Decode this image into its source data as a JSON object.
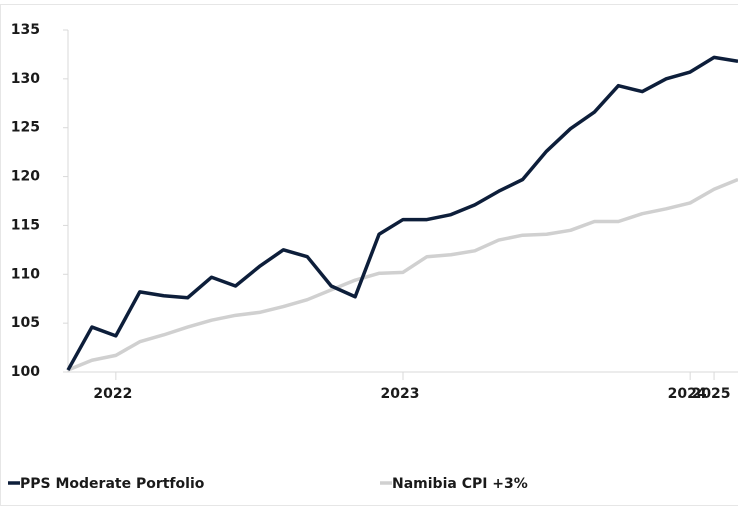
{
  "chart_data": {
    "type": "line",
    "categories": [
      null,
      null,
      "2022",
      null,
      null,
      null,
      null,
      null,
      null,
      null,
      null,
      null,
      null,
      null,
      "2023",
      null,
      null,
      null,
      null,
      null,
      null,
      null,
      null,
      null,
      null,
      null,
      "2024",
      "2025",
      null
    ],
    "series": [
      {
        "name": "PPS Moderate Portfolio",
        "color": "#0d1e3a",
        "values": [
          100.2,
          104.6,
          103.7,
          108.2,
          107.8,
          107.6,
          109.7,
          108.8,
          110.8,
          112.5,
          111.8,
          108.8,
          107.7,
          114.1,
          115.6,
          115.6,
          116.1,
          117.1,
          118.5,
          119.7,
          122.6,
          124.9,
          126.6,
          129.3,
          128.7,
          130.0,
          130.7,
          132.2,
          131.8
        ]
      },
      {
        "name": "Namibia CPI +3%",
        "color": "#d0d0d0",
        "values": [
          100.2,
          101.2,
          101.7,
          103.1,
          103.8,
          104.6,
          105.3,
          105.8,
          106.1,
          106.7,
          107.4,
          108.4,
          109.4,
          110.1,
          110.2,
          111.8,
          112.0,
          112.4,
          113.5,
          114.0,
          114.1,
          114.5,
          115.4,
          115.4,
          116.2,
          116.7,
          117.3,
          118.7,
          119.7
        ]
      }
    ],
    "ylim": [
      100,
      135
    ],
    "yticks": [
      100,
      105,
      110,
      115,
      120,
      125,
      130,
      135
    ],
    "grid": false,
    "legend": "bottom"
  }
}
